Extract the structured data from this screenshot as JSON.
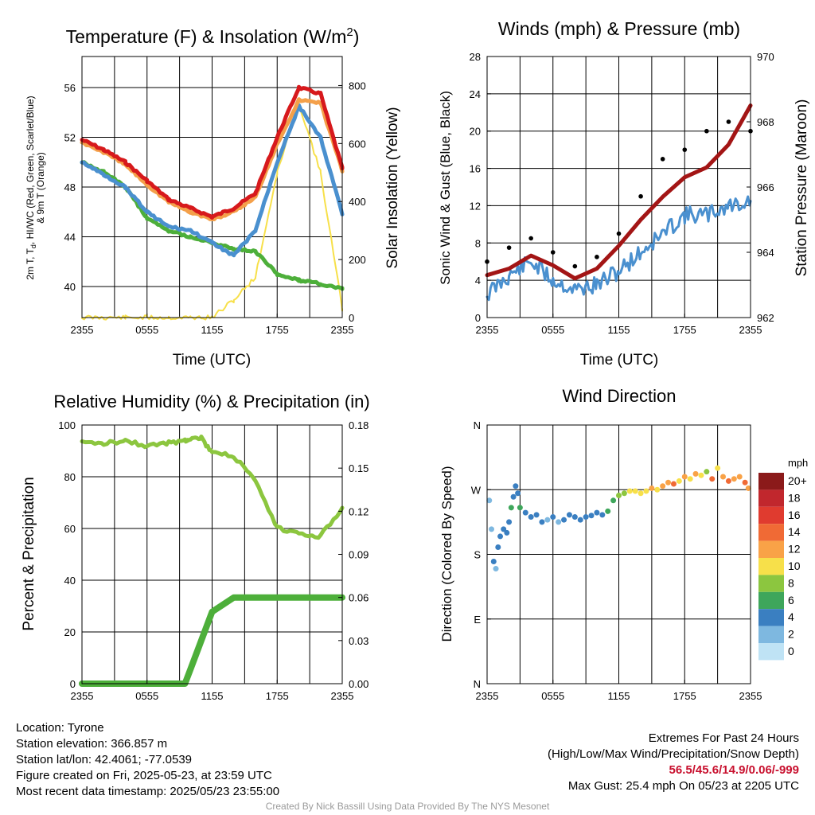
{
  "panels": [
    {
      "id": "temperature",
      "title_main": "Temperature (F) & Insolation (W/m",
      "title_sup": "2",
      "title_end": ")",
      "ylabel_left_line1": "2m T, T",
      "ylabel_left_sub": "d",
      "ylabel_left_rest": ", HI/WC (Red, Green, Scarlet/Blue)",
      "ylabel_left_line2": "& 9m T (Orange)",
      "ylabel_right": "Solar Insolation (Yellow)",
      "xlabel": "Time (UTC)",
      "xticks": [
        "2355",
        "0555",
        "1155",
        "1755",
        "2355"
      ],
      "yticks_left": [
        "40",
        "44",
        "48",
        "52",
        "56"
      ],
      "yticks_right": [
        "0",
        "200",
        "400",
        "600",
        "800"
      ]
    },
    {
      "id": "winds",
      "title": "Winds (mph) & Pressure (mb)",
      "ylabel_left": "Sonic Wind & Gust (Blue, Black)",
      "ylabel_right": "Station Pressure (Maroon)",
      "xlabel": "Time (UTC)",
      "xticks": [
        "2355",
        "0555",
        "1155",
        "1755",
        "2355"
      ],
      "yticks_left": [
        "0",
        "4",
        "8",
        "12",
        "16",
        "20",
        "24",
        "28"
      ],
      "yticks_right": [
        "962",
        "964",
        "966",
        "968",
        "970"
      ]
    },
    {
      "id": "humidity",
      "title": "Relative Humidity (%) & Precipitation (in)",
      "ylabel_left": "Percent & Precipitation",
      "xticks": [
        "2355",
        "0555",
        "1155",
        "1755",
        "2355"
      ],
      "yticks_left": [
        "0",
        "20",
        "40",
        "60",
        "80",
        "100"
      ],
      "yticks_right": [
        "0.00",
        "0.03",
        "0.06",
        "0.09",
        "0.12",
        "0.15",
        "0.18"
      ]
    },
    {
      "id": "direction",
      "title": "Wind Direction",
      "ylabel_left": "Direction (Colored By Speed)",
      "xticks": [
        "2355",
        "0555",
        "1155",
        "1755",
        "2355"
      ],
      "yticks_left": [
        "N",
        "E",
        "S",
        "W",
        "N"
      ],
      "legend_title": "mph",
      "legend_labels": [
        "20+",
        "18",
        "16",
        "14",
        "12",
        "10",
        "8",
        "6",
        "4",
        "2",
        "0"
      ],
      "legend_colors": [
        "#8b1a1a",
        "#c1272d",
        "#e03b2f",
        "#f06a35",
        "#f9a247",
        "#f7e04a",
        "#8cc63f",
        "#3ea65b",
        "#3a7fc1",
        "#7eb8e0",
        "#bfe3f5"
      ]
    }
  ],
  "info": {
    "location": "Location: Tyrone",
    "elevation": "Station elevation: 366.857 m",
    "latlon": "Station lat/lon: 42.4061; -77.0539",
    "created": "Figure created on Fri, 2025-05-23, at 23:59 UTC",
    "recent": "Most recent data timestamp: 2025/05/23 23:55:00",
    "extremes_title": "Extremes For Past 24 Hours",
    "extremes_desc": "(High/Low/Max Wind/Precipitation/Snow Depth)",
    "extremes_values": "56.5/45.6/14.9/0.06/-999",
    "max_gust": "Max Gust: 25.4 mph On 05/23 at 2205 UTC"
  },
  "credit": "Created By Nick Bassill Using Data Provided By The NYS Mesonet",
  "chart_data": [
    {
      "type": "line",
      "title": "Temperature (F) & Insolation (W/m2)",
      "xlabel": "Time (UTC)",
      "ylabel": "2m T, Td, HI/WC (Red, Green, Scarlet/Blue) & 9m T (Orange)",
      "ylabel_right": "Solar Insolation (Yellow)",
      "x": [
        0,
        2,
        4,
        6,
        8,
        10,
        12,
        14,
        16,
        18,
        20,
        22,
        24
      ],
      "xlim": [
        0,
        24
      ],
      "ylim": [
        37.5,
        58.5
      ],
      "ylim_right": [
        0,
        900
      ],
      "series": [
        {
          "color": "#d7191c",
          "axis": "left",
          "values": [
            51.8,
            51.0,
            50.0,
            48.5,
            47.0,
            46.3,
            45.6,
            46.3,
            47.5,
            52.0,
            56.0,
            55.5,
            49.5
          ]
        },
        {
          "color": "#f4a04a",
          "axis": "left",
          "values": [
            51.6,
            50.8,
            49.8,
            48.2,
            46.8,
            46.0,
            45.4,
            46.0,
            47.2,
            51.5,
            55.0,
            54.8,
            49.3
          ]
        },
        {
          "color": "#4a90cf",
          "axis": "left",
          "values": [
            50.0,
            49.0,
            48.0,
            46.0,
            44.8,
            44.5,
            43.5,
            42.5,
            44.5,
            50.0,
            54.5,
            52.0,
            45.8
          ]
        },
        {
          "color": "#4daf3a",
          "axis": "left",
          "values": [
            50.0,
            49.2,
            48.0,
            45.5,
            44.5,
            44.0,
            43.5,
            43.0,
            42.8,
            41.0,
            40.5,
            40.2,
            39.8
          ]
        },
        {
          "color": "#f7e04a",
          "axis": "right",
          "values": [
            0,
            0,
            0,
            0,
            0,
            0,
            0,
            60,
            140,
            500,
            740,
            500,
            30
          ]
        }
      ]
    },
    {
      "type": "line",
      "title": "Winds (mph) & Pressure (mb)",
      "xlabel": "Time (UTC)",
      "ylabel": "Sonic Wind & Gust (Blue, Black)",
      "ylabel_right": "Station Pressure (Maroon)",
      "x": [
        0,
        2,
        4,
        6,
        8,
        10,
        12,
        14,
        16,
        18,
        20,
        22,
        24
      ],
      "xlim": [
        0,
        24
      ],
      "ylim": [
        0,
        28
      ],
      "ylim_right": [
        962,
        970
      ],
      "series": [
        {
          "color": "#4a90cf",
          "axis": "left",
          "values": [
            2.5,
            4.5,
            6.0,
            4.0,
            3.0,
            3.5,
            5.0,
            7.0,
            9.0,
            11.0,
            11.0,
            12.0,
            12.5
          ]
        },
        {
          "color": "#000000",
          "axis": "left",
          "style": "points",
          "values": [
            6.0,
            7.5,
            8.5,
            7.0,
            5.5,
            6.5,
            9.0,
            13.0,
            17.0,
            18.0,
            20.0,
            21.0,
            20.0
          ]
        },
        {
          "color": "#a31515",
          "axis": "right",
          "values": [
            963.3,
            963.5,
            963.9,
            963.6,
            963.2,
            963.5,
            964.2,
            965.0,
            965.7,
            966.3,
            966.6,
            967.3,
            968.5
          ]
        }
      ]
    },
    {
      "type": "line",
      "title": "Relative Humidity (%) & Precipitation (in)",
      "ylabel": "Percent & Precipitation",
      "x": [
        0,
        2,
        4,
        6,
        8,
        9.5,
        10,
        11,
        12,
        14,
        16,
        18,
        20,
        22,
        24
      ],
      "xlim": [
        0,
        24
      ],
      "ylim": [
        0,
        100
      ],
      "ylim_right": [
        0,
        0.18
      ],
      "series": [
        {
          "color": "#8cc63f",
          "axis": "left",
          "values": [
            93,
            93,
            94,
            92,
            93,
            94,
            95,
            95,
            89,
            88,
            78,
            60,
            58,
            57,
            68
          ]
        },
        {
          "color": "#4daf3a",
          "axis": "right",
          "values": [
            0,
            0,
            0,
            0,
            0,
            0,
            0.01,
            0.03,
            0.05,
            0.06,
            0.06,
            0.06,
            0.06,
            0.06,
            0.06
          ]
        }
      ]
    },
    {
      "type": "scatter",
      "title": "Wind Direction",
      "ylabel": "Direction (Colored By Speed)",
      "xlim": [
        0,
        24
      ],
      "ylim": [
        0,
        360
      ],
      "yticks": [
        "N",
        "E",
        "S",
        "W",
        "N"
      ],
      "legend": {
        "title": "mph",
        "labels": [
          "20+",
          "18",
          "16",
          "14",
          "12",
          "10",
          "8",
          "6",
          "4",
          "2",
          "0"
        ]
      },
      "points": [
        {
          "x": 0.2,
          "dir": 255,
          "spd": 2
        },
        {
          "x": 0.4,
          "dir": 215,
          "spd": 2
        },
        {
          "x": 0.6,
          "dir": 170,
          "spd": 3
        },
        {
          "x": 0.8,
          "dir": 160,
          "spd": 2
        },
        {
          "x": 1.0,
          "dir": 190,
          "spd": 3
        },
        {
          "x": 1.2,
          "dir": 205,
          "spd": 4
        },
        {
          "x": 1.5,
          "dir": 215,
          "spd": 4
        },
        {
          "x": 1.8,
          "dir": 210,
          "spd": 3
        },
        {
          "x": 2.0,
          "dir": 225,
          "spd": 4
        },
        {
          "x": 2.2,
          "dir": 245,
          "spd": 5
        },
        {
          "x": 2.4,
          "dir": 260,
          "spd": 4
        },
        {
          "x": 2.6,
          "dir": 275,
          "spd": 4
        },
        {
          "x": 2.8,
          "dir": 265,
          "spd": 4
        },
        {
          "x": 3.0,
          "dir": 245,
          "spd": 5
        },
        {
          "x": 3.5,
          "dir": 238,
          "spd": 4
        },
        {
          "x": 4.0,
          "dir": 232,
          "spd": 4
        },
        {
          "x": 4.5,
          "dir": 235,
          "spd": 4
        },
        {
          "x": 5.0,
          "dir": 225,
          "spd": 3
        },
        {
          "x": 5.5,
          "dir": 228,
          "spd": 2
        },
        {
          "x": 6.0,
          "dir": 232,
          "spd": 3
        },
        {
          "x": 6.5,
          "dir": 225,
          "spd": 2
        },
        {
          "x": 7.0,
          "dir": 228,
          "spd": 3
        },
        {
          "x": 7.5,
          "dir": 235,
          "spd": 3
        },
        {
          "x": 8.0,
          "dir": 232,
          "spd": 3
        },
        {
          "x": 8.5,
          "dir": 228,
          "spd": 4
        },
        {
          "x": 9.0,
          "dir": 232,
          "spd": 4
        },
        {
          "x": 9.5,
          "dir": 234,
          "spd": 4
        },
        {
          "x": 10.0,
          "dir": 238,
          "spd": 4
        },
        {
          "x": 10.5,
          "dir": 235,
          "spd": 4
        },
        {
          "x": 11.0,
          "dir": 240,
          "spd": 5
        },
        {
          "x": 11.5,
          "dir": 255,
          "spd": 6
        },
        {
          "x": 12.0,
          "dir": 262,
          "spd": 7
        },
        {
          "x": 12.5,
          "dir": 265,
          "spd": 8
        },
        {
          "x": 13.0,
          "dir": 268,
          "spd": 9
        },
        {
          "x": 13.5,
          "dir": 268,
          "spd": 10
        },
        {
          "x": 14.0,
          "dir": 265,
          "spd": 9
        },
        {
          "x": 14.5,
          "dir": 268,
          "spd": 10
        },
        {
          "x": 15.0,
          "dir": 272,
          "spd": 11
        },
        {
          "x": 15.5,
          "dir": 270,
          "spd": 10
        },
        {
          "x": 16.0,
          "dir": 275,
          "spd": 12
        },
        {
          "x": 16.5,
          "dir": 280,
          "spd": 11
        },
        {
          "x": 17.0,
          "dir": 278,
          "spd": 13
        },
        {
          "x": 17.5,
          "dir": 282,
          "spd": 10
        },
        {
          "x": 18.0,
          "dir": 288,
          "spd": 12
        },
        {
          "x": 18.5,
          "dir": 285,
          "spd": 9
        },
        {
          "x": 19.0,
          "dir": 292,
          "spd": 12
        },
        {
          "x": 19.5,
          "dir": 290,
          "spd": 10
        },
        {
          "x": 20.0,
          "dir": 295,
          "spd": 8
        },
        {
          "x": 20.5,
          "dir": 285,
          "spd": 13
        },
        {
          "x": 21.0,
          "dir": 300,
          "spd": 10
        },
        {
          "x": 21.5,
          "dir": 288,
          "spd": 12
        },
        {
          "x": 22.0,
          "dir": 282,
          "spd": 14
        },
        {
          "x": 22.5,
          "dir": 285,
          "spd": 12
        },
        {
          "x": 23.0,
          "dir": 288,
          "spd": 11
        },
        {
          "x": 23.5,
          "dir": 280,
          "spd": 13
        },
        {
          "x": 23.8,
          "dir": 272,
          "spd": 12
        }
      ]
    }
  ]
}
